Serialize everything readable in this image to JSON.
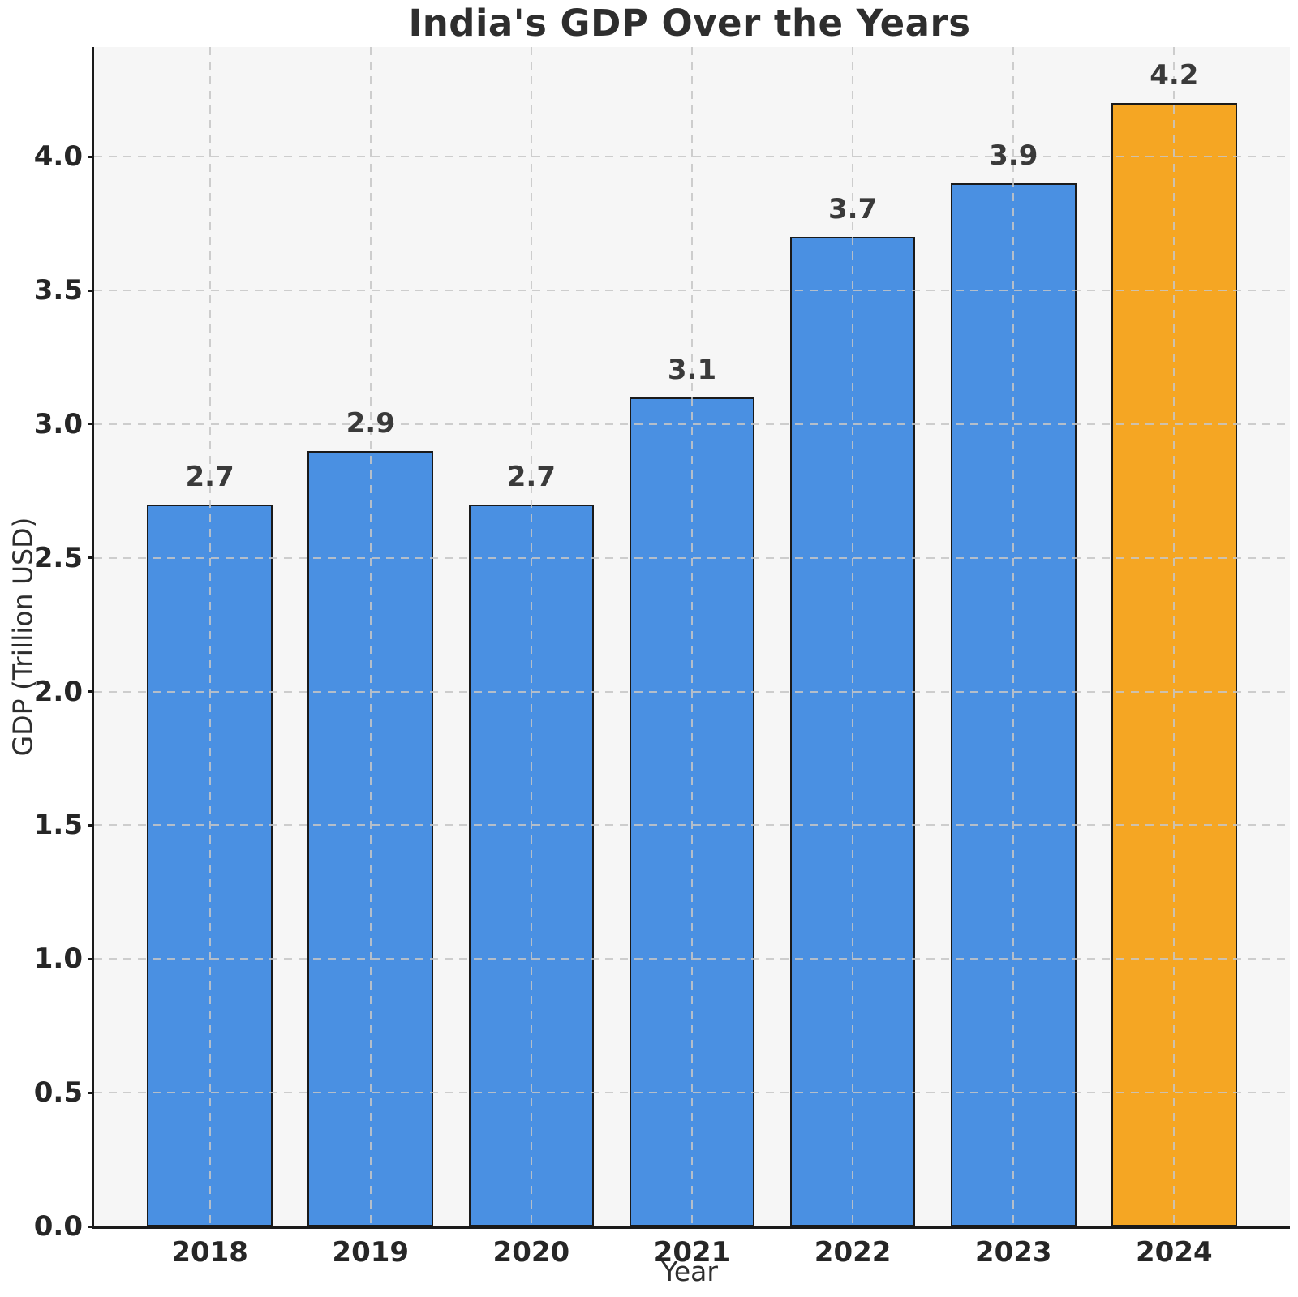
{
  "chart_data": {
    "type": "bar",
    "title": "India's GDP Over the Years",
    "xlabel": "Year",
    "ylabel": "GDP (Trillion USD)",
    "categories": [
      "2018",
      "2019",
      "2020",
      "2021",
      "2022",
      "2023",
      "2024"
    ],
    "values": [
      2.7,
      2.9,
      2.7,
      3.1,
      3.7,
      3.9,
      4.2
    ],
    "bar_labels": [
      "2.7",
      "2.9",
      "2.7",
      "3.1",
      "3.7",
      "3.9",
      "4.2"
    ],
    "bar_colors": [
      "#4a90e2",
      "#4a90e2",
      "#4a90e2",
      "#4a90e2",
      "#4a90e2",
      "#4a90e2",
      "#f5a623"
    ],
    "highlight_index": 6,
    "yticks": [
      {
        "value": 0.0,
        "label": "0.0"
      },
      {
        "value": 0.5,
        "label": "0.5"
      },
      {
        "value": 1.0,
        "label": "1.0"
      },
      {
        "value": 1.5,
        "label": "1.5"
      },
      {
        "value": 2.0,
        "label": "2.0"
      },
      {
        "value": 2.5,
        "label": "2.5"
      },
      {
        "value": 3.0,
        "label": "3.0"
      },
      {
        "value": 3.5,
        "label": "3.5"
      },
      {
        "value": 4.0,
        "label": "4.0"
      }
    ],
    "ylim": [
      0,
      4.41
    ],
    "xlim": [
      -0.72,
      6.72
    ],
    "bar_width": 0.78,
    "grid": "dashed",
    "legend": "none",
    "colors": {
      "bar_default": "#4a90e2",
      "bar_highlight": "#f5a623",
      "bar_edge": "#1a1a1a",
      "plot_background": "#f6f6f6",
      "figure_background": "#ffffff",
      "grid_line": "#c6c6c6",
      "axis_line": "#1a1a1a",
      "text": "#2e2e2e"
    }
  }
}
